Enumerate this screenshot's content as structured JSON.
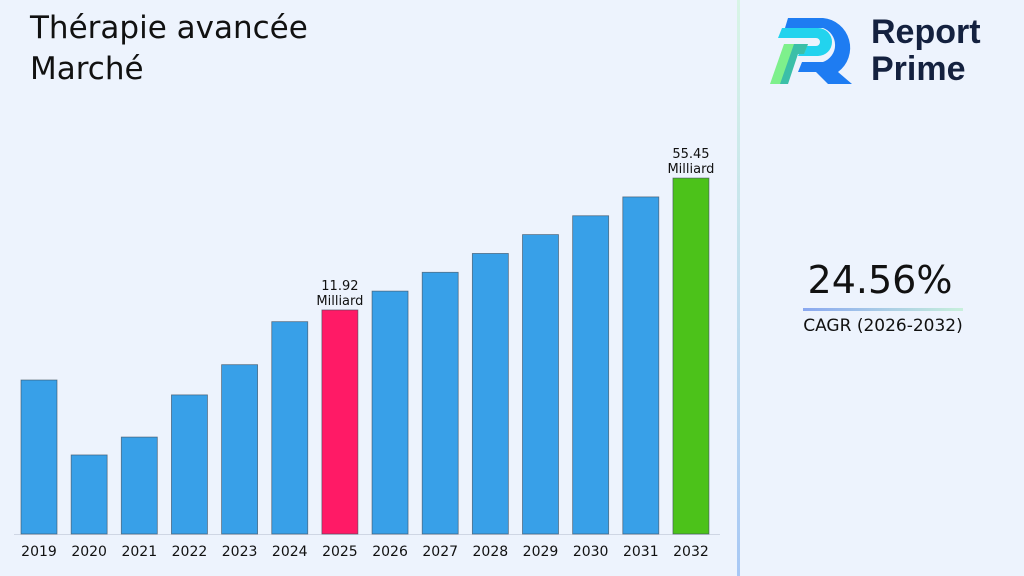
{
  "title_line1": "Thérapie avancée",
  "title_line2": "Marché",
  "logo": {
    "line1": "Report",
    "line2": "Prime"
  },
  "cagr": {
    "value": "24.56%",
    "label": "CAGR (2026-2032)"
  },
  "chart_data": {
    "type": "bar",
    "categories": [
      "2019",
      "2020",
      "2021",
      "2022",
      "2023",
      "2024",
      "2025",
      "2026",
      "2027",
      "2028",
      "2029",
      "2030",
      "2031",
      "2032"
    ],
    "values": [
      5.27,
      2.2,
      2.71,
      4.43,
      6.3,
      10.4,
      11.92,
      14.85,
      18.49,
      23.03,
      28.69,
      35.74,
      44.52,
      55.45
    ],
    "colors": [
      "#38a0e8",
      "#38a0e8",
      "#38a0e8",
      "#38a0e8",
      "#38a0e8",
      "#38a0e8",
      "#ff1a66",
      "#38a0e8",
      "#38a0e8",
      "#38a0e8",
      "#38a0e8",
      "#38a0e8",
      "#38a0e8",
      "#4cc21a"
    ],
    "data_labels": [
      {
        "index": 6,
        "value": "11.92",
        "unit": "Milliard"
      },
      {
        "index": 13,
        "value": "55.45",
        "unit": "Milliard"
      }
    ],
    "title": "",
    "xlabel": "",
    "ylabel": "",
    "grid": false
  }
}
